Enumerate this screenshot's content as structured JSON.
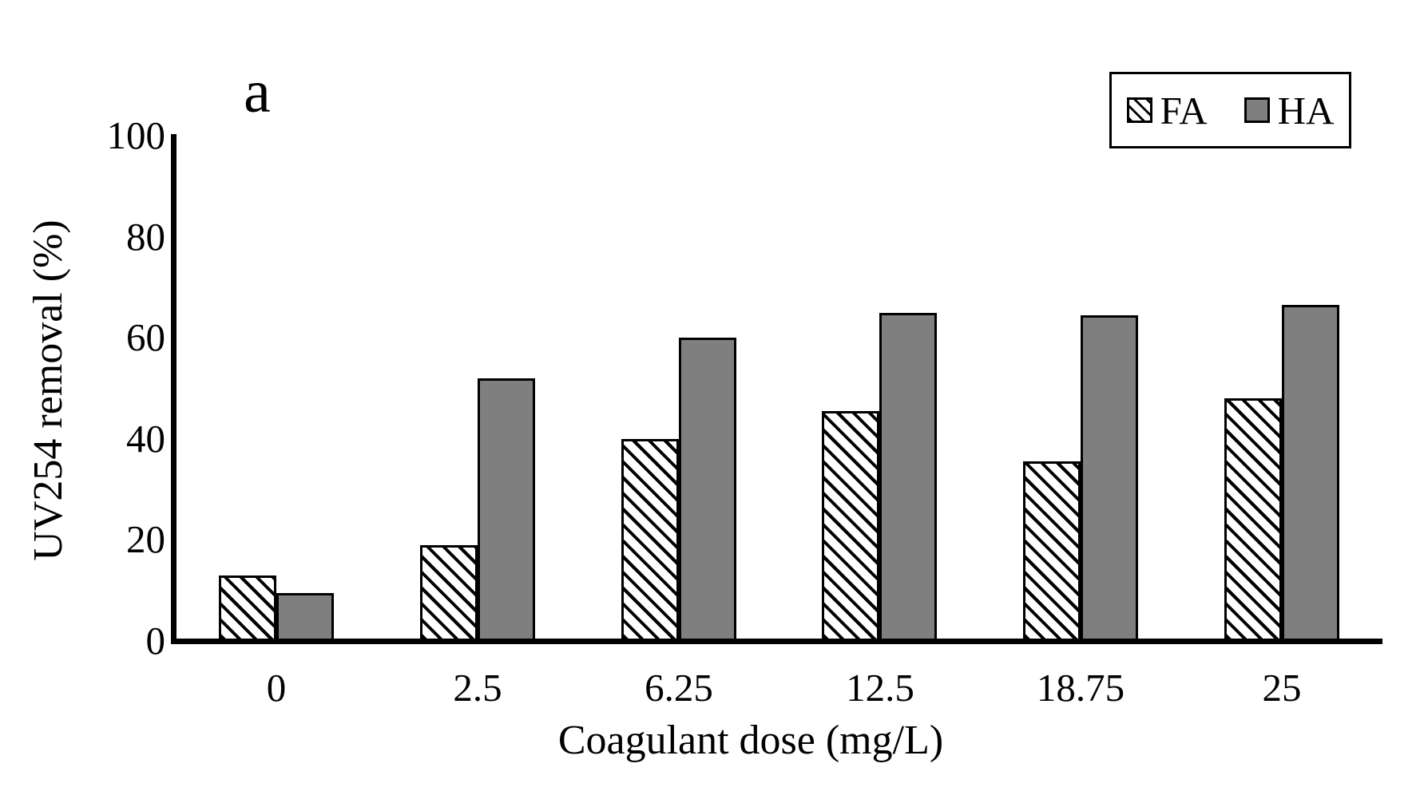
{
  "panel_label": "a",
  "colors": {
    "background": "#ffffff",
    "axis": "#000000",
    "bar_border": "#000000",
    "ha_fill": "#7f7f7f",
    "fa_hatch_line": "#000000",
    "fa_hatch_bg": "#ffffff"
  },
  "legend": {
    "position": "top-right",
    "items": [
      {
        "label": "FA",
        "swatch": "hatched"
      },
      {
        "label": "HA",
        "swatch": "solid-gray"
      }
    ]
  },
  "chart_data": {
    "type": "bar",
    "title": "",
    "xlabel": "Coagulant dose (mg/L)",
    "ylabel": "UV254 removal (%)",
    "categories": [
      "0",
      "2.5",
      "6.25",
      "12.5",
      "18.75",
      "25"
    ],
    "series": [
      {
        "name": "FA",
        "style": "hatched",
        "values": [
          13,
          19,
          40,
          45.5,
          35.5,
          48
        ]
      },
      {
        "name": "HA",
        "style": "solid",
        "values": [
          9.5,
          52,
          60,
          65,
          64.5,
          66.5
        ]
      }
    ],
    "ylim": [
      0,
      100
    ],
    "yticks": [
      0,
      20,
      40,
      60,
      80,
      100
    ],
    "grid": false,
    "legend_position": "top-right"
  }
}
